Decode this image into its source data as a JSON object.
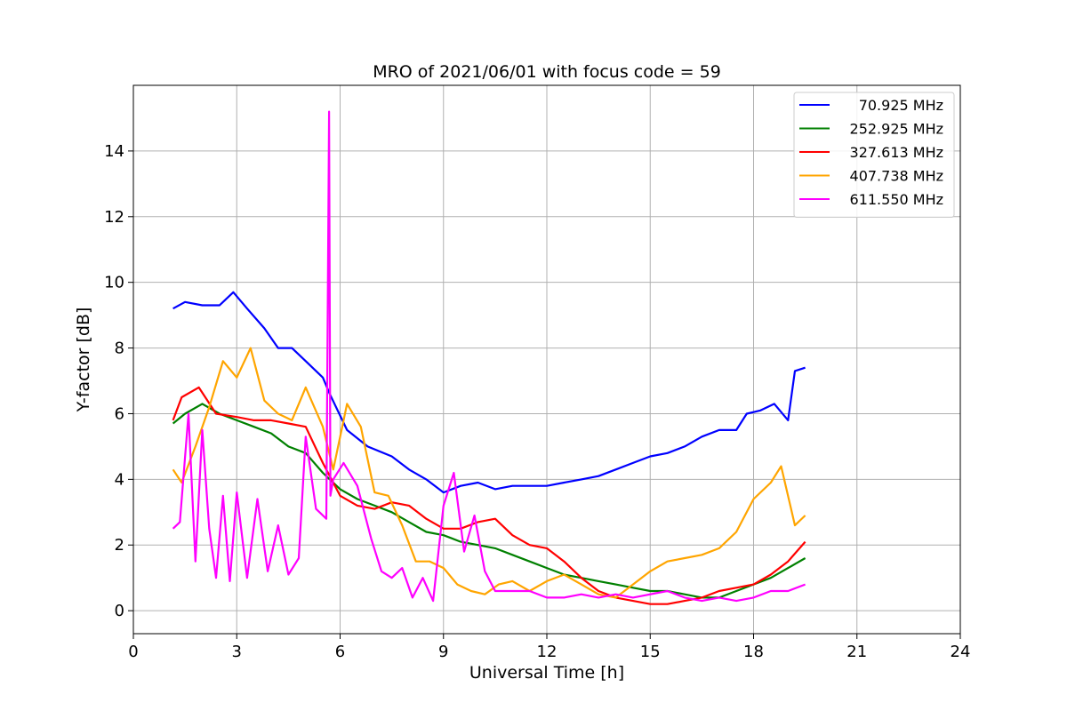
{
  "chart_data": {
    "type": "line",
    "title": "MRO of 2021/06/01 with focus code = 59",
    "xlabel": "Universal Time [h]",
    "ylabel": "Y-factor [dB]",
    "xlim": [
      0,
      24
    ],
    "ylim": [
      -0.7,
      16
    ],
    "xticks": [
      0,
      3,
      6,
      9,
      12,
      15,
      18,
      21,
      24
    ],
    "yticks": [
      0,
      2,
      4,
      6,
      8,
      10,
      12,
      14
    ],
    "grid": true,
    "legend_position": "top-right",
    "series": [
      {
        "name": "70.925 MHz",
        "color": "#0000ff",
        "x": [
          1.15,
          1.5,
          2.0,
          2.5,
          2.9,
          3.3,
          3.8,
          4.2,
          4.6,
          5.0,
          5.5,
          5.7,
          6.2,
          6.8,
          7.5,
          8.0,
          8.5,
          9.0,
          9.5,
          10.0,
          10.5,
          11.0,
          11.5,
          12.0,
          12.5,
          13.0,
          13.5,
          14.0,
          14.5,
          15.0,
          15.5,
          16.0,
          16.5,
          17.0,
          17.5,
          17.8,
          18.2,
          18.6,
          19.0,
          19.2,
          19.5
        ],
        "y": [
          9.2,
          9.4,
          9.3,
          9.3,
          9.7,
          9.2,
          8.6,
          8.0,
          8.0,
          7.6,
          7.1,
          6.6,
          5.5,
          5.0,
          4.7,
          4.3,
          4.0,
          3.6,
          3.8,
          3.9,
          3.7,
          3.8,
          3.8,
          3.8,
          3.9,
          4.0,
          4.1,
          4.3,
          4.5,
          4.7,
          4.8,
          5.0,
          5.3,
          5.5,
          5.5,
          6.0,
          6.1,
          6.3,
          5.8,
          7.3,
          7.4
        ]
      },
      {
        "name": "252.925 MHz",
        "color": "#008000",
        "x": [
          1.15,
          1.5,
          2.0,
          2.5,
          3.0,
          3.5,
          4.0,
          4.5,
          5.0,
          5.5,
          6.0,
          6.5,
          7.0,
          7.5,
          8.0,
          8.5,
          9.0,
          9.5,
          10.0,
          10.5,
          11.0,
          11.5,
          12.0,
          12.5,
          13.0,
          13.5,
          14.0,
          14.5,
          15.0,
          15.5,
          16.0,
          16.5,
          17.0,
          17.5,
          18.0,
          18.5,
          19.0,
          19.5
        ],
        "y": [
          5.7,
          6.0,
          6.3,
          6.0,
          5.8,
          5.6,
          5.4,
          5.0,
          4.8,
          4.2,
          3.7,
          3.4,
          3.2,
          3.0,
          2.7,
          2.4,
          2.3,
          2.1,
          2.0,
          1.9,
          1.7,
          1.5,
          1.3,
          1.1,
          1.0,
          0.9,
          0.8,
          0.7,
          0.6,
          0.6,
          0.5,
          0.4,
          0.4,
          0.6,
          0.8,
          1.0,
          1.3,
          1.6
        ]
      },
      {
        "name": "327.613 MHz",
        "color": "#ff0000",
        "x": [
          1.15,
          1.4,
          1.9,
          2.4,
          3.0,
          3.5,
          4.0,
          4.5,
          5.0,
          5.5,
          6.0,
          6.5,
          7.0,
          7.5,
          8.0,
          8.5,
          9.0,
          9.5,
          10.0,
          10.5,
          11.0,
          11.5,
          12.0,
          12.5,
          13.0,
          13.5,
          14.0,
          14.5,
          15.0,
          15.5,
          16.0,
          16.5,
          17.0,
          17.5,
          18.0,
          18.5,
          19.0,
          19.5
        ],
        "y": [
          5.8,
          6.5,
          6.8,
          6.0,
          5.9,
          5.8,
          5.8,
          5.7,
          5.6,
          4.5,
          3.5,
          3.2,
          3.1,
          3.3,
          3.2,
          2.8,
          2.5,
          2.5,
          2.7,
          2.8,
          2.3,
          2.0,
          1.9,
          1.5,
          1.0,
          0.6,
          0.4,
          0.3,
          0.2,
          0.2,
          0.3,
          0.4,
          0.6,
          0.7,
          0.8,
          1.1,
          1.5,
          2.1
        ]
      },
      {
        "name": "407.738 MHz",
        "color": "#ffa500",
        "x": [
          1.15,
          1.4,
          1.8,
          2.2,
          2.6,
          3.0,
          3.4,
          3.8,
          4.2,
          4.6,
          5.0,
          5.5,
          5.8,
          6.2,
          6.6,
          7.0,
          7.4,
          7.8,
          8.2,
          8.6,
          9.0,
          9.4,
          9.8,
          10.2,
          10.6,
          11.0,
          11.5,
          12.0,
          12.5,
          13.0,
          13.5,
          14.0,
          14.5,
          15.0,
          15.5,
          16.0,
          16.5,
          17.0,
          17.5,
          18.0,
          18.5,
          18.8,
          19.2,
          19.5
        ],
        "y": [
          4.3,
          3.9,
          5.0,
          6.2,
          7.6,
          7.1,
          8.0,
          6.4,
          6.0,
          5.8,
          6.8,
          5.6,
          4.3,
          6.3,
          5.6,
          3.6,
          3.5,
          2.6,
          1.5,
          1.5,
          1.3,
          0.8,
          0.6,
          0.5,
          0.8,
          0.9,
          0.6,
          0.9,
          1.1,
          0.8,
          0.5,
          0.4,
          0.8,
          1.2,
          1.5,
          1.6,
          1.7,
          1.9,
          2.4,
          3.4,
          3.9,
          4.4,
          2.6,
          2.9
        ]
      },
      {
        "name": "611.550 MHz",
        "color": "#ff00ff",
        "x": [
          1.15,
          1.35,
          1.6,
          1.8,
          2.0,
          2.2,
          2.4,
          2.6,
          2.8,
          3.0,
          3.3,
          3.6,
          3.9,
          4.2,
          4.5,
          4.8,
          5.0,
          5.3,
          5.6,
          5.68,
          5.72,
          5.8,
          6.1,
          6.5,
          6.9,
          7.2,
          7.5,
          7.8,
          8.1,
          8.4,
          8.7,
          9.0,
          9.3,
          9.6,
          9.9,
          10.2,
          10.5,
          11.0,
          11.5,
          12.0,
          12.5,
          13.0,
          13.5,
          14.0,
          14.5,
          15.0,
          15.5,
          16.0,
          16.5,
          17.0,
          17.5,
          18.0,
          18.5,
          19.0,
          19.5
        ],
        "y": [
          2.5,
          2.7,
          6.0,
          1.5,
          5.5,
          2.5,
          1.0,
          3.5,
          0.9,
          3.6,
          1.0,
          3.4,
          1.2,
          2.6,
          1.1,
          1.6,
          5.3,
          3.1,
          2.8,
          15.2,
          3.5,
          4.0,
          4.5,
          3.8,
          2.2,
          1.2,
          1.0,
          1.3,
          0.4,
          1.0,
          0.3,
          3.2,
          4.2,
          1.8,
          2.9,
          1.2,
          0.6,
          0.6,
          0.6,
          0.4,
          0.4,
          0.5,
          0.4,
          0.5,
          0.4,
          0.5,
          0.6,
          0.4,
          0.3,
          0.4,
          0.3,
          0.4,
          0.6,
          0.6,
          0.8
        ]
      }
    ]
  }
}
